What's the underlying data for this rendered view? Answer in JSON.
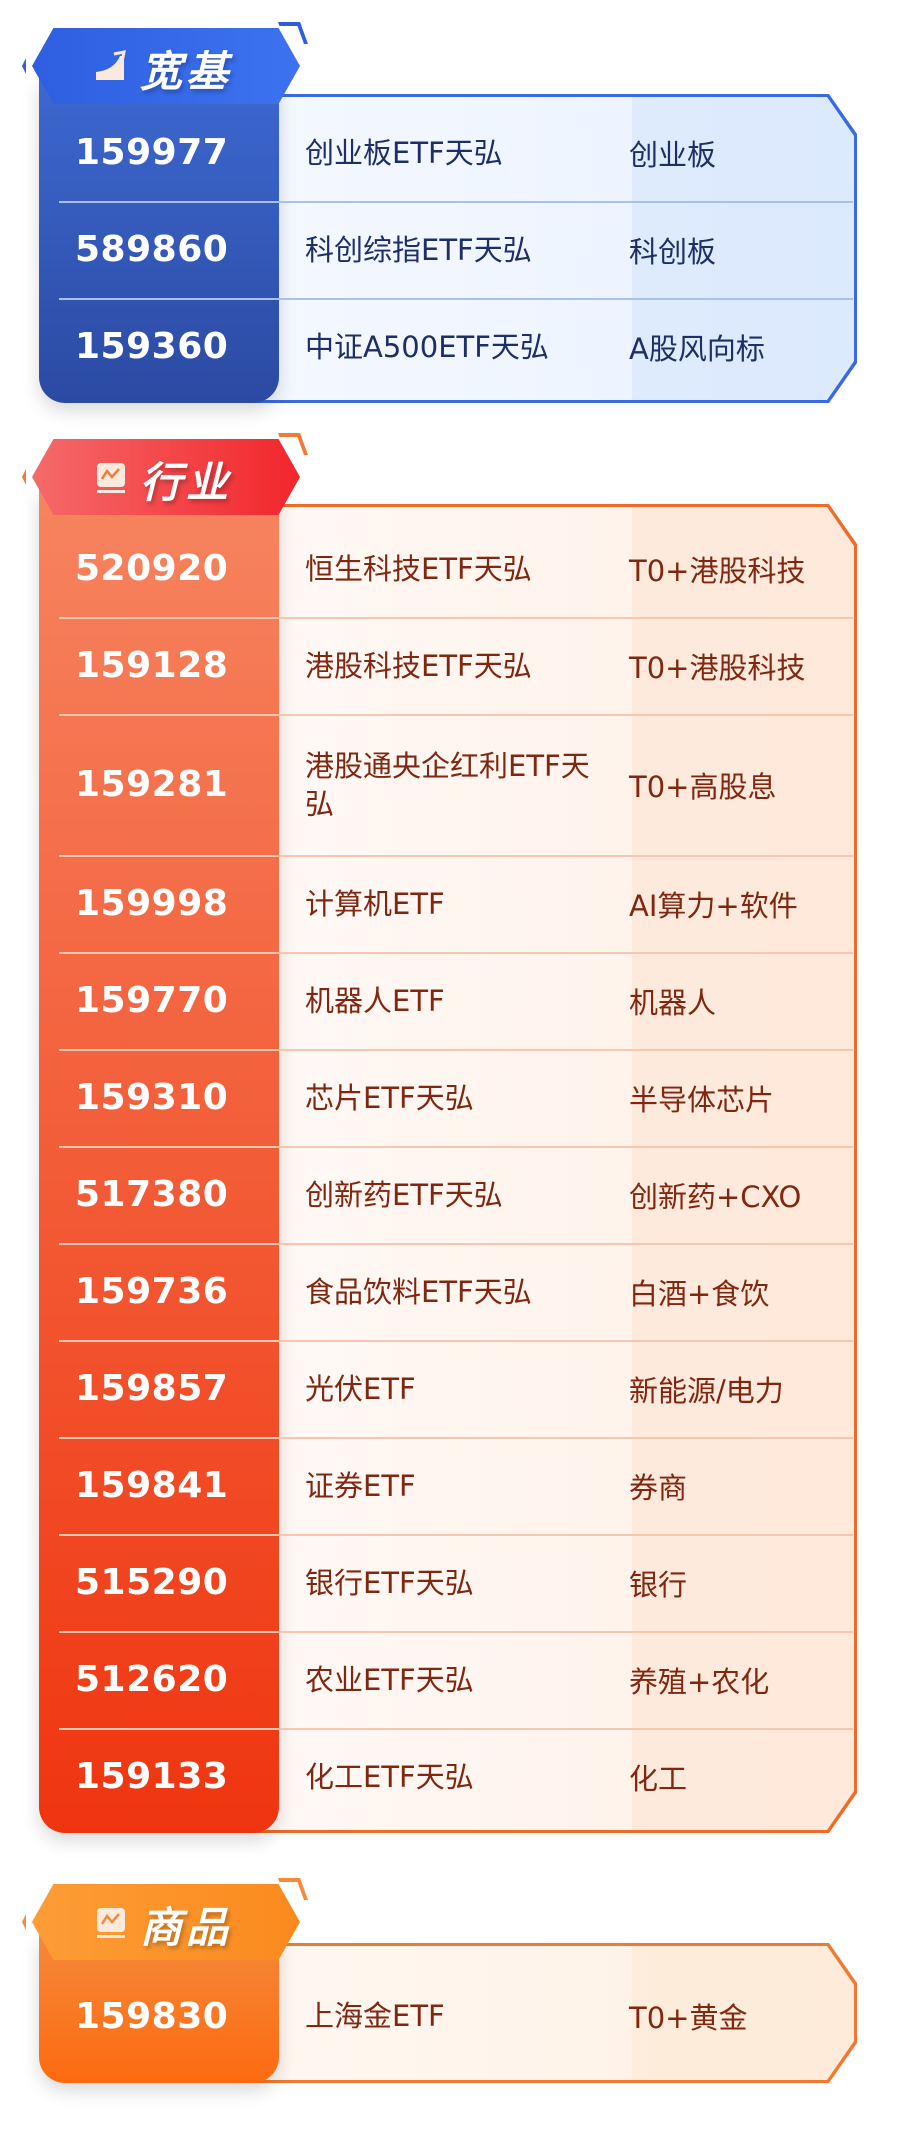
{
  "sections": [
    {
      "title": "宽基",
      "icon": "rising-chart-icon",
      "colors": {
        "accent": "#2f5ed8",
        "text": "#1d2f66"
      },
      "rows": [
        {
          "code": "159977",
          "name": "创业板ETF天弘",
          "tag": "创业板"
        },
        {
          "code": "589860",
          "name": "科创综指ETF天弘",
          "tag": "科创板"
        },
        {
          "code": "159360",
          "name": "中证A500ETF天弘",
          "tag": "A股风向标"
        }
      ]
    },
    {
      "title": "行业",
      "icon": "line-chart-icon",
      "colors": {
        "accent": "#f0481c",
        "text": "#7f2710"
      },
      "rows": [
        {
          "code": "520920",
          "name": "恒生科技ETF天弘",
          "tag": "T0+港股科技"
        },
        {
          "code": "159128",
          "name": "港股科技ETF天弘",
          "tag": "T0+港股科技"
        },
        {
          "code": "159281",
          "name": "港股通央企红利ETF天弘",
          "tag": "T0+高股息"
        },
        {
          "code": "159998",
          "name": "计算机ETF",
          "tag": "AI算力+软件"
        },
        {
          "code": "159770",
          "name": "机器人ETF",
          "tag": "机器人"
        },
        {
          "code": "159310",
          "name": "芯片ETF天弘",
          "tag": "半导体芯片"
        },
        {
          "code": "517380",
          "name": "创新药ETF天弘",
          "tag": "创新药+CXO"
        },
        {
          "code": "159736",
          "name": "食品饮料ETF天弘",
          "tag": "白酒+食饮"
        },
        {
          "code": "159857",
          "name": "光伏ETF",
          "tag": "新能源/电力"
        },
        {
          "code": "159841",
          "name": "证券ETF",
          "tag": "券商"
        },
        {
          "code": "515290",
          "name": "银行ETF天弘",
          "tag": "银行"
        },
        {
          "code": "512620",
          "name": "农业ETF天弘",
          "tag": "养殖+农化"
        },
        {
          "code": "159133",
          "name": "化工ETF天弘",
          "tag": "化工"
        }
      ]
    },
    {
      "title": "商品",
      "icon": "line-chart-icon",
      "colors": {
        "accent": "#fb7a1e",
        "text": "#7f2710"
      },
      "rows": [
        {
          "code": "159830",
          "name": "上海金ETF",
          "tag": "T0+黄金"
        }
      ]
    }
  ]
}
